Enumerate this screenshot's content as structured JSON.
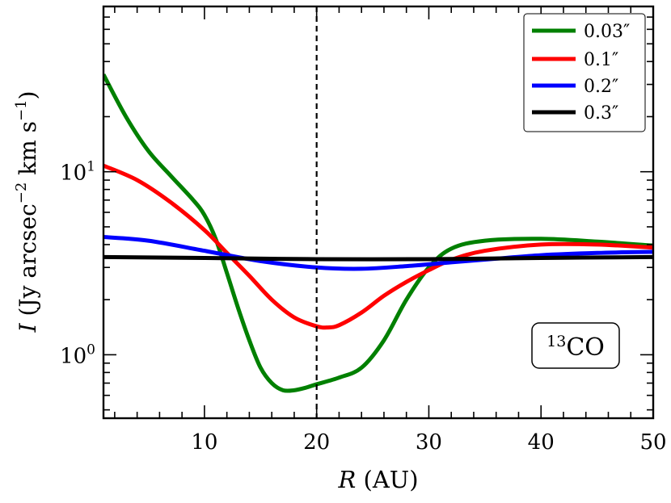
{
  "chart_data": {
    "type": "line",
    "title": "",
    "xlabel_symbol": "R",
    "xlabel_unit": "(AU)",
    "ylabel_symbol": "I",
    "ylabel_unit_pre": "(Jy arcsec",
    "ylabel_unit_mid": "km s",
    "ylabel_unit_post": ")",
    "ylabel_exp_a": "−2",
    "ylabel_exp_b": "−1",
    "xscale": "linear",
    "yscale": "log",
    "xlim": [
      1,
      50
    ],
    "ylim": [
      0.45,
      80
    ],
    "xticks": [
      10,
      20,
      30,
      40,
      50
    ],
    "xtick_labels": [
      "10",
      "20",
      "30",
      "40",
      "50"
    ],
    "yticks_major": [
      1,
      10
    ],
    "ytick_base": "10",
    "ytick_exponents": [
      "0",
      "1"
    ],
    "vline_x": 20,
    "annotation": {
      "sup": "13",
      "text": "CO"
    },
    "legend_position": "top-right",
    "series": [
      {
        "name": "0.03″",
        "color": "#008000",
        "x": [
          1,
          3,
          5,
          7,
          9,
          10,
          11,
          12,
          13,
          14,
          15,
          16,
          17,
          18,
          19,
          20,
          22,
          24,
          26,
          28,
          30,
          32,
          35,
          40,
          45,
          50
        ],
        "y": [
          34,
          20,
          13,
          9.5,
          7.0,
          5.8,
          4.3,
          2.8,
          1.8,
          1.2,
          0.85,
          0.7,
          0.64,
          0.64,
          0.66,
          0.69,
          0.75,
          0.85,
          1.2,
          2.0,
          3.0,
          3.8,
          4.2,
          4.3,
          4.15,
          3.95
        ]
      },
      {
        "name": "0.1″",
        "color": "#ff0000",
        "x": [
          1,
          4,
          7,
          10,
          12,
          14,
          16,
          18,
          20,
          21,
          22,
          24,
          26,
          28,
          30,
          32,
          35,
          40,
          45,
          50
        ],
        "y": [
          10.8,
          9.0,
          6.8,
          4.8,
          3.6,
          2.7,
          2.0,
          1.6,
          1.43,
          1.41,
          1.45,
          1.7,
          2.1,
          2.5,
          2.9,
          3.3,
          3.7,
          4.0,
          4.0,
          3.85
        ]
      },
      {
        "name": "0.2″",
        "color": "#0000ff",
        "x": [
          1,
          5,
          10,
          15,
          20,
          24,
          28,
          32,
          36,
          40,
          45,
          50
        ],
        "y": [
          4.4,
          4.2,
          3.7,
          3.25,
          3.0,
          2.95,
          3.05,
          3.2,
          3.35,
          3.5,
          3.6,
          3.65
        ]
      },
      {
        "name": "0.3″",
        "color": "#000000",
        "x": [
          1,
          10,
          20,
          30,
          40,
          50
        ],
        "y": [
          3.42,
          3.38,
          3.33,
          3.33,
          3.38,
          3.42
        ]
      }
    ]
  }
}
